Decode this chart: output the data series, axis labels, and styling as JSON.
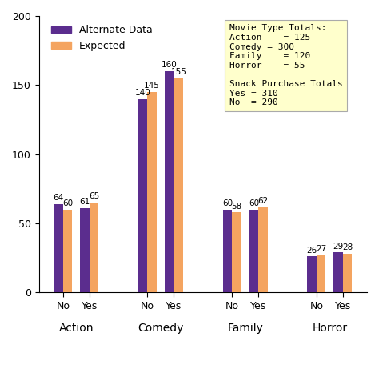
{
  "groups": [
    "Action",
    "Comedy",
    "Family",
    "Horror"
  ],
  "subgroups": [
    "No",
    "Yes"
  ],
  "alternate_data": [
    [
      64,
      61
    ],
    [
      140,
      160
    ],
    [
      60,
      60
    ],
    [
      26,
      29
    ]
  ],
  "expected_data": [
    [
      60,
      65
    ],
    [
      145,
      155
    ],
    [
      58,
      62
    ],
    [
      27,
      28
    ]
  ],
  "bar_color_alternate": "#5B2D8E",
  "bar_color_expected": "#F4A460",
  "ylim": [
    0,
    200
  ],
  "yticks": [
    0,
    50,
    100,
    150,
    200
  ],
  "background_color": "#FFFFFF",
  "legend_alternate": "Alternate Data",
  "legend_expected": "Expected",
  "annotation_box": "Movie Type Totals:\nAction    = 125\nComedy = 300\nFamily    = 120\nHorror    = 55\n\nSnack Purchase Totals\nYes = 310\nNo  = 290",
  "annotation_box_bg": "#FFFFCC",
  "bar_width": 0.35,
  "label_fontsize": 8,
  "tick_fontsize": 9,
  "group_label_fontsize": 10,
  "legend_fontsize": 9,
  "value_label_fontsize": 7.5
}
